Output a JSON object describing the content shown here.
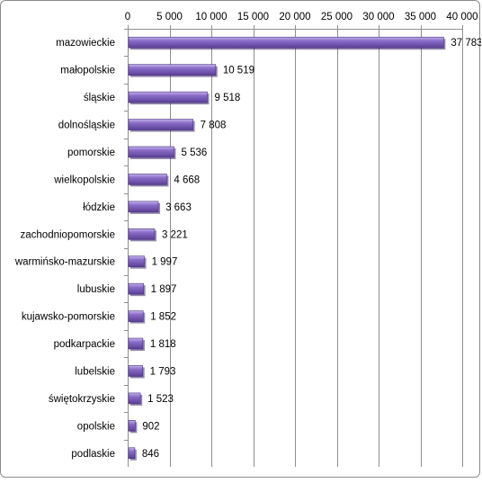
{
  "chart_data": {
    "type": "bar",
    "orientation": "horizontal",
    "title": "",
    "xlabel": "",
    "ylabel": "",
    "xlim": [
      0,
      40000
    ],
    "x_ticks": [
      0,
      5000,
      10000,
      15000,
      20000,
      25000,
      30000,
      35000,
      40000
    ],
    "x_tick_labels": [
      "0",
      "5 000",
      "10 000",
      "15 000",
      "20 000",
      "25 000",
      "30 000",
      "35 000",
      "40 000"
    ],
    "x_axis_position": "top",
    "grid": true,
    "legend": "none",
    "bar_color": "#7a5fb5",
    "categories": [
      "mazowieckie",
      "małopolskie",
      "śląskie",
      "dolnośląskie",
      "pomorskie",
      "wielkopolskie",
      "łódzkie",
      "zachodniopomorskie",
      "warmińsko-mazurskie",
      "lubuskie",
      "kujawsko-pomorskie",
      "podkarpackie",
      "lubelskie",
      "świętokrzyskie",
      "opolskie",
      "podlaskie"
    ],
    "values": [
      37783,
      10519,
      9518,
      7808,
      5536,
      4668,
      3663,
      3221,
      1997,
      1897,
      1852,
      1818,
      1793,
      1523,
      902,
      846
    ],
    "value_labels": [
      "37 783",
      "10 519",
      "9 518",
      "7 808",
      "5 536",
      "4 668",
      "3 663",
      "3 221",
      "1 997",
      "1 897",
      "1 852",
      "1 818",
      "1 793",
      "1 523",
      "902",
      "846"
    ]
  }
}
